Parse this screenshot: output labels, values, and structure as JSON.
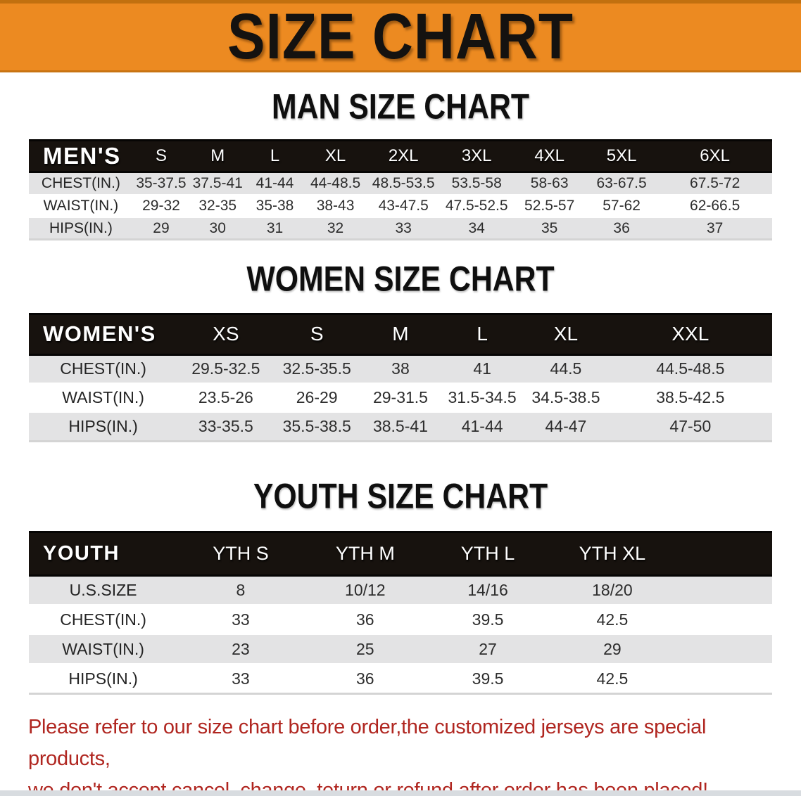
{
  "banner": {
    "title": "SIZE CHART"
  },
  "colors": {
    "banner_bg": "#EC8A21",
    "table_header_bg": "#17120E",
    "row_stripe_gray": "#E3E3E4",
    "notice_red": "#B02620"
  },
  "sections": [
    {
      "heading": "MAN SIZE CHART",
      "table": {
        "header_label": "MEN'S",
        "columns": [
          "S",
          "M",
          "L",
          "XL",
          "2XL",
          "3XL",
          "4XL",
          "5XL",
          "6XL"
        ],
        "rows": [
          {
            "label": "CHEST(IN.)",
            "values": [
              "35-37.5",
              "37.5-41",
              "41-44",
              "44-48.5",
              "48.5-53.5",
              "53.5-58",
              "58-63",
              "63-67.5",
              "67.5-72"
            ]
          },
          {
            "label": "WAIST(IN.)",
            "values": [
              "29-32",
              "32-35",
              "35-38",
              "38-43",
              "43-47.5",
              "47.5-52.5",
              "52.5-57",
              "57-62",
              "62-66.5"
            ]
          },
          {
            "label": "HIPS(IN.)",
            "values": [
              "29",
              "30",
              "31",
              "32",
              "33",
              "34",
              "35",
              "36",
              "37"
            ]
          }
        ]
      }
    },
    {
      "heading": "WOMEN SIZE CHART",
      "table": {
        "header_label": "WOMEN'S",
        "columns": [
          "XS",
          "S",
          "M",
          "L",
          "XL",
          "XXL"
        ],
        "rows": [
          {
            "label": "CHEST(IN.)",
            "values": [
              "29.5-32.5",
              "32.5-35.5",
              "38",
              "41",
              "44.5",
              "44.5-48.5"
            ]
          },
          {
            "label": "WAIST(IN.)",
            "values": [
              "23.5-26",
              "26-29",
              "29-31.5",
              "31.5-34.5",
              "34.5-38.5",
              "38.5-42.5"
            ]
          },
          {
            "label": "HIPS(IN.)",
            "values": [
              "33-35.5",
              "35.5-38.5",
              "38.5-41",
              "41-44",
              "44-47",
              "47-50"
            ]
          }
        ]
      }
    },
    {
      "heading": "YOUTH SIZE CHART",
      "table": {
        "header_label": "YOUTH",
        "columns": [
          "YTH S",
          "YTH M",
          "YTH L",
          "YTH XL"
        ],
        "rows": [
          {
            "label": "U.S.SIZE",
            "values": [
              "8",
              "10/12",
              "14/16",
              "18/20"
            ]
          },
          {
            "label": "CHEST(IN.)",
            "values": [
              "33",
              "36",
              "39.5",
              "42.5"
            ]
          },
          {
            "label": "WAIST(IN.)",
            "values": [
              "23",
              "25",
              "27",
              "29"
            ]
          },
          {
            "label": "HIPS(IN.)",
            "values": [
              "33",
              "36",
              "39.5",
              "42.5"
            ]
          }
        ]
      }
    }
  ],
  "footer": {
    "line1": "Please refer to our size chart before order,the customized jerseys are special products,",
    "line2": "we don't accept cancel, change, teturn or refund after order has been placed!"
  }
}
